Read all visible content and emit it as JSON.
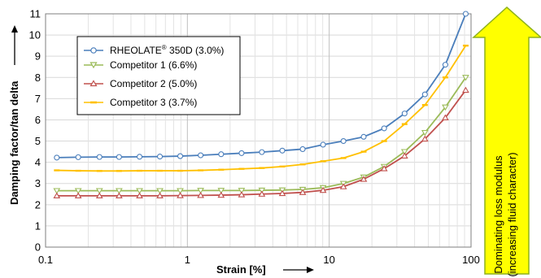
{
  "chart_data": {
    "type": "line",
    "xscale": "log",
    "xlim": [
      0.1,
      100
    ],
    "ylim": [
      0,
      11
    ],
    "grid": true,
    "legend_position": "top-left",
    "xlabel": "Strain [%]",
    "ylabel": "Damping factor/tan delta",
    "xticks": [
      "0.1",
      "1",
      "10",
      "100"
    ],
    "yticks": [
      "0",
      "1",
      "2",
      "3",
      "4",
      "5",
      "6",
      "7",
      "8",
      "9",
      "10",
      "11"
    ],
    "x": [
      0.12,
      0.17,
      0.24,
      0.33,
      0.46,
      0.64,
      0.89,
      1.24,
      1.73,
      2.41,
      3.35,
      4.67,
      6.5,
      9.05,
      12.6,
      17.5,
      24.4,
      34.0,
      47.3,
      65.9,
      91.7
    ],
    "series": [
      {
        "name": "RHEOLATE® 350D (3.0%)",
        "name_main": "RHEOLATE",
        "name_sup": "®",
        "name_rest": " 350D (3.0%)",
        "color": "#4a7ebb",
        "marker": "circle",
        "values": [
          4.22,
          4.24,
          4.25,
          4.25,
          4.26,
          4.27,
          4.29,
          4.33,
          4.38,
          4.43,
          4.48,
          4.55,
          4.62,
          4.83,
          5.0,
          5.2,
          5.6,
          6.3,
          7.2,
          8.6,
          11.0
        ]
      },
      {
        "name": "Competitor 1 (6.6%)",
        "color": "#9bbb59",
        "marker": "triangle-down",
        "values": [
          2.66,
          2.66,
          2.66,
          2.66,
          2.66,
          2.66,
          2.66,
          2.67,
          2.67,
          2.67,
          2.68,
          2.69,
          2.72,
          2.8,
          3.0,
          3.3,
          3.8,
          4.5,
          5.4,
          6.6,
          8.0
        ]
      },
      {
        "name": "Competitor 2 (5.0%)",
        "color": "#c0504d",
        "marker": "triangle-up",
        "values": [
          2.42,
          2.42,
          2.42,
          2.42,
          2.42,
          2.42,
          2.43,
          2.44,
          2.45,
          2.47,
          2.5,
          2.53,
          2.58,
          2.68,
          2.85,
          3.2,
          3.7,
          4.3,
          5.1,
          6.1,
          7.4
        ]
      },
      {
        "name": "Competitor 3 (3.7%)",
        "color": "#ffc000",
        "marker": "dash",
        "values": [
          3.62,
          3.6,
          3.59,
          3.59,
          3.6,
          3.6,
          3.6,
          3.62,
          3.65,
          3.69,
          3.73,
          3.8,
          3.9,
          4.05,
          4.2,
          4.5,
          5.0,
          5.8,
          6.7,
          8.0,
          9.5
        ]
      }
    ],
    "annotation": {
      "line1": "Dominating loss modulus",
      "line2": "(increasing fluid character)",
      "fill": "#ffff00",
      "stroke": "#8fb21c"
    }
  }
}
